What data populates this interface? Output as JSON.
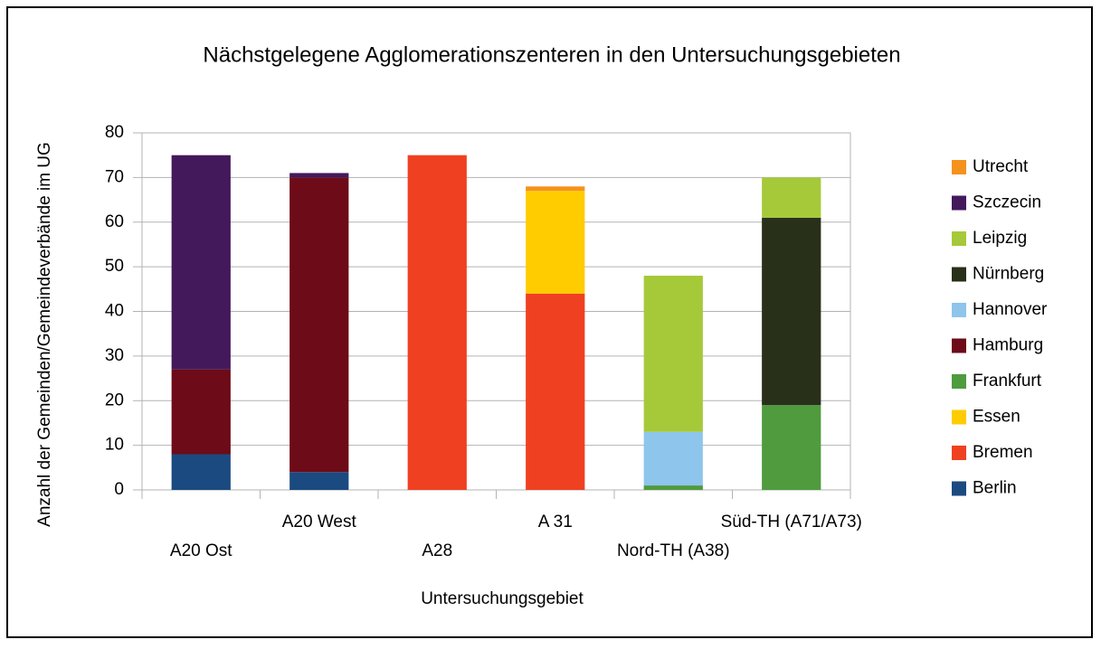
{
  "chart_data": {
    "type": "stacked_bar",
    "title": "Nächstgelegene Agglomerationszenteren in den Untersuchungsgebieten",
    "x_label": "Untersuchungsgebiet",
    "y_label": "Anzahl der Gemeinden/Gemeindeverbände im UG",
    "categories": [
      "A20 Ost",
      "A20 West",
      "A28",
      "A 31",
      "Nord-TH (A38)",
      "Süd-TH (A71/A73)"
    ],
    "series": [
      {
        "name": "Berlin",
        "color": "#1b4a80",
        "values": [
          8,
          4,
          0,
          0,
          0,
          0
        ]
      },
      {
        "name": "Bremen",
        "color": "#f04022",
        "values": [
          0,
          0,
          75,
          44,
          0,
          0
        ]
      },
      {
        "name": "Essen",
        "color": "#ffcc00",
        "values": [
          0,
          0,
          0,
          23,
          0,
          0
        ]
      },
      {
        "name": "Frankfurt",
        "color": "#4f9b3e",
        "values": [
          0,
          0,
          0,
          0,
          1,
          19
        ]
      },
      {
        "name": "Hamburg",
        "color": "#6e0b18",
        "values": [
          19,
          66,
          0,
          0,
          0,
          0
        ]
      },
      {
        "name": "Hannover",
        "color": "#8ec5ec",
        "values": [
          0,
          0,
          0,
          0,
          12,
          0
        ]
      },
      {
        "name": "Nürnberg",
        "color": "#28301a",
        "values": [
          0,
          0,
          0,
          0,
          0,
          42
        ]
      },
      {
        "name": "Leipzig",
        "color": "#a6c93a",
        "values": [
          0,
          0,
          0,
          0,
          35,
          9
        ]
      },
      {
        "name": "Szczecin",
        "color": "#43195c",
        "values": [
          48,
          1,
          0,
          0,
          0,
          0
        ]
      },
      {
        "name": "Utrecht",
        "color": "#f5921e",
        "values": [
          0,
          0,
          0,
          1,
          0,
          0
        ]
      }
    ],
    "ylim": [
      0,
      80
    ],
    "yticks": [
      0,
      10,
      20,
      30,
      40,
      50,
      60,
      70,
      80
    ],
    "grid": true,
    "legend": "right"
  }
}
